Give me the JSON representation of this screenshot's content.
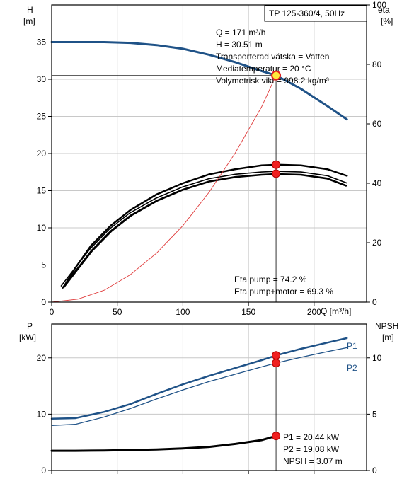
{
  "chart_data": [
    {
      "type": "line",
      "title": "TP 125-360/4, 50Hz",
      "xlabel": "Q [m³/h]",
      "xlim": [
        0,
        240
      ],
      "x_ticks": [
        0,
        50,
        100,
        150,
        200
      ],
      "left_axis": {
        "label_top": "H",
        "label_unit": "[m]",
        "ylim": [
          0,
          40
        ],
        "ticks": [
          0,
          5,
          10,
          15,
          20,
          25,
          30,
          35
        ]
      },
      "right_axis": {
        "label_top": "eta",
        "label_unit": "[%]",
        "ylim": [
          0,
          100
        ],
        "ticks": [
          0,
          20,
          40,
          60,
          80,
          100
        ]
      },
      "grid": true,
      "series": [
        {
          "key": "H",
          "axis": "left",
          "color": "#1f5287",
          "width": 3,
          "x": [
            0,
            18,
            40,
            60,
            80,
            100,
            120,
            140,
            160,
            171,
            190,
            210,
            225
          ],
          "y": [
            35,
            35,
            35,
            34.9,
            34.6,
            34.1,
            33.3,
            32.3,
            31.1,
            30.51,
            28.7,
            26.4,
            24.6
          ]
        },
        {
          "key": "eta_pump",
          "axis": "left",
          "color": "#000000",
          "width": 4,
          "outline": true,
          "x": [
            8,
            18,
            30,
            45,
            60,
            80,
            100,
            120,
            140,
            160,
            171,
            190,
            210,
            225
          ],
          "y": [
            2,
            4.3,
            7,
            9.7,
            11.8,
            13.8,
            15.3,
            16.4,
            17.0,
            17.3,
            17.4,
            17.3,
            16.8,
            15.8
          ]
        },
        {
          "key": "eta_pump_motor",
          "axis": "left",
          "color": "#000000",
          "width": 2.5,
          "x": [
            10,
            18,
            30,
            45,
            60,
            80,
            100,
            120,
            140,
            160,
            171,
            190,
            210,
            225
          ],
          "y": [
            2.3,
            4.6,
            7.6,
            10.3,
            12.4,
            14.5,
            16.0,
            17.2,
            17.9,
            18.4,
            18.5,
            18.4,
            17.9,
            17.0
          ]
        },
        {
          "key": "system_curve",
          "axis": "left",
          "color": "#e03c3c",
          "width": 0.9,
          "x": [
            0,
            20,
            40,
            60,
            80,
            100,
            120,
            140,
            160,
            171
          ],
          "y": [
            0,
            0.4,
            1.6,
            3.7,
            6.6,
            10.3,
            14.8,
            20.1,
            26.3,
            30.51
          ]
        }
      ],
      "operating_point": {
        "Q": 171,
        "H": 30.51,
        "eta_points_left_units": [
          18.5,
          17.3
        ]
      },
      "annotations": {
        "info": [
          "Q = 171 m³/h",
          "H = 30.51 m",
          "Transporterad vätska = Vatten",
          "Mediatemperatur = 20 °C",
          "Volymetrisk vikt = 998.2 kg/m³"
        ],
        "eta": [
          "Eta pump = 74.2 %",
          "Eta pump+motor = 69.3 %"
        ]
      }
    },
    {
      "type": "line",
      "xlim": [
        0,
        240
      ],
      "left_axis": {
        "label_top": "P",
        "label_unit": "[kW]",
        "ylim": [
          0,
          26
        ],
        "ticks": [
          0,
          10,
          20
        ]
      },
      "right_axis": {
        "label_top": "NPSH",
        "label_unit": "[m]",
        "ylim": [
          0,
          13
        ],
        "ticks": [
          0,
          5,
          10
        ]
      },
      "grid": true,
      "series": [
        {
          "name": "P1",
          "axis": "left",
          "color": "#1f5287",
          "width": 2.5,
          "x": [
            0,
            18,
            40,
            60,
            80,
            100,
            120,
            140,
            160,
            171,
            190,
            210,
            225
          ],
          "y": [
            9.2,
            9.3,
            10.4,
            11.8,
            13.6,
            15.3,
            16.8,
            18.2,
            19.6,
            20.44,
            21.6,
            22.7,
            23.5
          ]
        },
        {
          "name": "P2",
          "axis": "left",
          "color": "#1f5287",
          "width": 1.3,
          "x": [
            0,
            18,
            40,
            60,
            80,
            100,
            120,
            140,
            160,
            171,
            190,
            210,
            225
          ],
          "y": [
            8.0,
            8.2,
            9.5,
            11.0,
            12.7,
            14.3,
            15.8,
            17.1,
            18.4,
            19.08,
            20.1,
            21.1,
            21.8
          ]
        },
        {
          "name": "NPSH",
          "axis": "right",
          "color": "#000000",
          "width": 3,
          "x": [
            0,
            18,
            40,
            60,
            80,
            100,
            120,
            140,
            160,
            171
          ],
          "y": [
            1.75,
            1.75,
            1.78,
            1.82,
            1.87,
            1.96,
            2.1,
            2.36,
            2.7,
            3.07
          ]
        }
      ],
      "operating_point": {
        "Q": 171,
        "P1": 20.44,
        "P2": 19.08,
        "NPSH": 3.07
      },
      "legend_labels": [
        "P1",
        "P2"
      ],
      "annotations": [
        "P1 = 20.44 kW",
        "P2 = 19.08 kW",
        "NPSH = 3.07 m"
      ]
    }
  ]
}
